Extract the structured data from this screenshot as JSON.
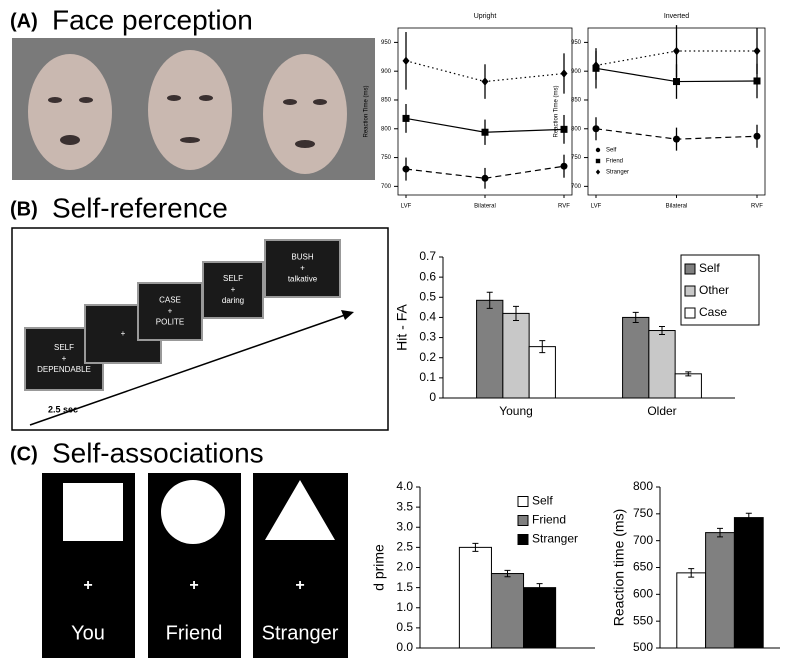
{
  "panels": [
    {
      "letter": "(A)",
      "title": "Face perception"
    },
    {
      "letter": "(B)",
      "title": "Self-reference"
    },
    {
      "letter": "(C)",
      "title": "Self-associations"
    }
  ],
  "task_b": {
    "screens": [
      [
        "SELF",
        "+",
        "DEPENDABLE"
      ],
      [
        "+"
      ],
      [
        "CASE",
        "+",
        "POLITE"
      ],
      [
        "SELF",
        "+",
        "daring"
      ],
      [
        "BUSH",
        "+",
        "talkative"
      ]
    ],
    "duration": "2.5 sec"
  },
  "task_c": {
    "labels": [
      "You",
      "Friend",
      "Stranger"
    ],
    "fixation": "+"
  },
  "chart_data": [
    {
      "type": "line",
      "title": "Upright",
      "y_label": "Reaction Time (ms)",
      "categories": [
        "LVF",
        "Bilateral",
        "RVF"
      ],
      "series": [
        {
          "color": "#000000",
          "marker": "circle",
          "dash": "dashed",
          "values": [
            730,
            714,
            735
          ],
          "errors": [
            20,
            18,
            20
          ]
        },
        {
          "color": "#000000",
          "marker": "square",
          "dash": "solid",
          "values": [
            818,
            794,
            799
          ],
          "errors": [
            25,
            22,
            25
          ]
        },
        {
          "color": "#000000",
          "marker": "diamond",
          "dash": "dotted",
          "values": [
            918,
            882,
            896
          ],
          "errors": [
            50,
            30,
            35
          ]
        }
      ],
      "ylim": [
        685,
        975
      ],
      "yticks": [
        700,
        750,
        800,
        850,
        900,
        950
      ]
    },
    {
      "type": "line",
      "title": "Inverted",
      "y_label": "Reaction Time (ms)",
      "categories": [
        "LVF",
        "Bilateral",
        "RVF"
      ],
      "series": [
        {
          "name": "Self",
          "color": "#000000",
          "marker": "circle",
          "dash": "dashed",
          "values": [
            800,
            782,
            787
          ],
          "errors": [
            20,
            20,
            20
          ]
        },
        {
          "name": "Friend",
          "color": "#000000",
          "marker": "square",
          "dash": "solid",
          "values": [
            905,
            882,
            883
          ],
          "errors": [
            35,
            30,
            30
          ]
        },
        {
          "name": "Stranger",
          "color": "#000000",
          "marker": "diamond",
          "dash": "dotted",
          "values": [
            910,
            935,
            935
          ],
          "errors": [
            25,
            45,
            40
          ]
        }
      ],
      "ylim": [
        685,
        975
      ],
      "yticks": [
        700,
        750,
        800,
        850,
        900,
        950
      ],
      "legend": "lower left"
    },
    {
      "type": "bar",
      "y_label": "Hit - FA",
      "categories": [
        "Young",
        "Older"
      ],
      "series": [
        {
          "name": "Self",
          "color": "#808080",
          "values": [
            0.485,
            0.4
          ],
          "errors": [
            0.04,
            0.025
          ]
        },
        {
          "name": "Other",
          "color": "#c8c8c8",
          "values": [
            0.42,
            0.335
          ],
          "errors": [
            0.035,
            0.02
          ]
        },
        {
          "name": "Case",
          "color": "#ffffff",
          "values": [
            0.255,
            0.12
          ],
          "errors": [
            0.03,
            0.01
          ]
        }
      ],
      "ylim": [
        0,
        0.7
      ],
      "yticks": [
        0,
        0.1,
        0.2,
        0.3,
        0.4,
        0.5,
        0.6,
        0.7
      ],
      "legend": "upper right"
    },
    {
      "type": "bar",
      "y_label": "d prime",
      "categories": [
        null
      ],
      "series": [
        {
          "name": "Self",
          "color": "#ffffff",
          "values": [
            2.5
          ],
          "errors": [
            0.1
          ]
        },
        {
          "name": "Friend",
          "color": "#808080",
          "values": [
            1.85
          ],
          "errors": [
            0.08
          ]
        },
        {
          "name": "Stranger",
          "color": "#000000",
          "values": [
            1.5
          ],
          "errors": [
            0.1
          ]
        }
      ],
      "ylim": [
        0,
        4
      ],
      "yticks": [
        {
          "value": 0,
          "label": "0.0"
        },
        0.5,
        {
          "value": 1,
          "label": "1.0"
        },
        1.5,
        {
          "value": 2,
          "label": "2.0"
        },
        2.5,
        {
          "value": 3,
          "label": "3.0"
        },
        3.5,
        {
          "value": 4,
          "label": "4.0"
        }
      ],
      "legend": "upper right"
    },
    {
      "type": "bar",
      "y_label": "Reaction time (ms)",
      "categories": [
        null
      ],
      "series": [
        {
          "color": "#ffffff",
          "values": [
            640
          ],
          "errors": [
            8
          ]
        },
        {
          "color": "#808080",
          "values": [
            715
          ],
          "errors": [
            8
          ]
        },
        {
          "color": "#000000",
          "values": [
            743
          ],
          "errors": [
            8
          ]
        }
      ],
      "ylim": [
        500,
        800
      ],
      "yticks": [
        500,
        550,
        600,
        650,
        700,
        750,
        800
      ]
    }
  ]
}
